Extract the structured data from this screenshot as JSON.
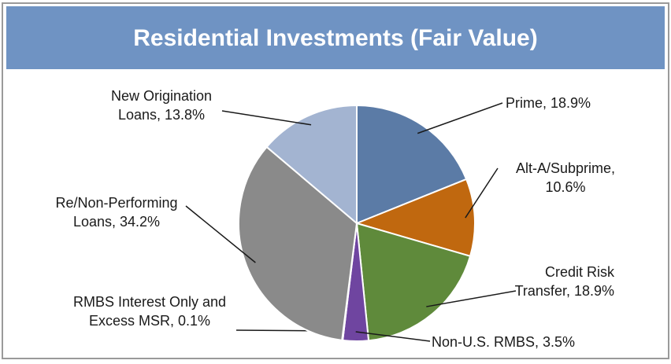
{
  "chart_data": {
    "type": "pie",
    "title": "Residential Investments (Fair Value)",
    "categories": [
      "Prime, 18.9%",
      "Alt-A/Subprime,\n10.6%",
      "Credit Risk\nTransfer, 18.9%",
      "Non-U.S. RMBS, 3.5%",
      "RMBS Interest Only and\nExcess MSR, 0.1%",
      "Re/Non-Performing\nLoans, 34.2%",
      "New Origination\nLoans, 13.8%"
    ],
    "values": [
      18.9,
      10.6,
      18.9,
      3.5,
      0.1,
      34.2,
      13.8
    ],
    "colors": [
      "#5b7ba6",
      "#c0680f",
      "#5f8a3b",
      "#6f45a0",
      "#b0b0b0",
      "#8a8a8a",
      "#a3b4d1"
    ]
  }
}
